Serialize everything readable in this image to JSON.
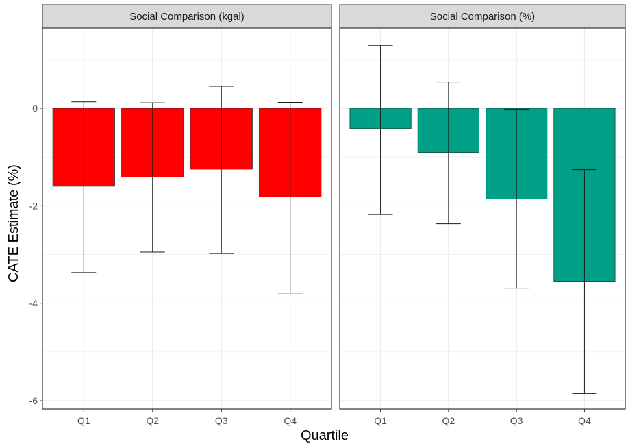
{
  "chart_data": {
    "type": "bar",
    "ylabel": "CATE Estimate (%)",
    "xlabel": "Quartile",
    "ylim": [
      -6.2,
      1.7
    ],
    "yticks": [
      0,
      -2,
      -4,
      -6
    ],
    "ytick_labels": [
      "0",
      "-2",
      "-4",
      "-6"
    ],
    "categories": [
      "Q1",
      "Q2",
      "Q3",
      "Q4"
    ],
    "grid": true,
    "legend": "none",
    "panels": [
      {
        "title": "Social Comparison (kgal)",
        "color": "#ff0000",
        "values": [
          -1.6,
          -1.41,
          -1.25,
          -1.82
        ],
        "error_low": [
          -3.37,
          -2.95,
          -2.98,
          -3.79
        ],
        "error_high": [
          0.13,
          0.11,
          0.45,
          0.12
        ]
      },
      {
        "title": "Social Comparison (%)",
        "color": "#00a087",
        "values": [
          -0.42,
          -0.91,
          -1.86,
          -3.55
        ],
        "error_low": [
          -2.18,
          -2.37,
          -3.69,
          -5.85
        ],
        "error_high": [
          1.29,
          0.54,
          -0.02,
          -1.26
        ]
      }
    ]
  }
}
